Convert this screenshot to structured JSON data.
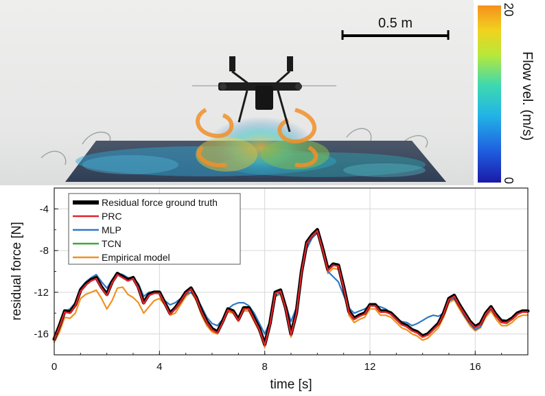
{
  "scene": {
    "scale_bar_label": "0.5 m"
  },
  "colorbar": {
    "label": "Flow vel. (m/s)",
    "max_label": "20",
    "min_label": "0",
    "colors": [
      "#1a1aa8",
      "#1f5fe0",
      "#22b4e6",
      "#3dd9b0",
      "#b7e83a",
      "#f2d21e",
      "#f5901c"
    ]
  },
  "chart_data": {
    "type": "line",
    "xlabel": "time [s]",
    "ylabel": "residual force [N]",
    "xlim": [
      0,
      18
    ],
    "ylim": [
      -18,
      -2
    ],
    "xticks": [
      0,
      4,
      8,
      12,
      16
    ],
    "yticks": [
      -16,
      -12,
      -8,
      -4
    ],
    "grid": true,
    "legend_position": "top-left",
    "x": [
      0,
      0.2,
      0.4,
      0.6,
      0.8,
      1.0,
      1.2,
      1.4,
      1.6,
      1.8,
      2.0,
      2.2,
      2.4,
      2.6,
      2.8,
      3.0,
      3.2,
      3.4,
      3.6,
      3.8,
      4.0,
      4.2,
      4.4,
      4.6,
      4.8,
      5.0,
      5.2,
      5.4,
      5.6,
      5.8,
      6.0,
      6.2,
      6.4,
      6.6,
      6.8,
      7.0,
      7.2,
      7.4,
      7.6,
      7.8,
      8.0,
      8.2,
      8.4,
      8.6,
      8.8,
      9.0,
      9.2,
      9.4,
      9.6,
      9.8,
      10.0,
      10.2,
      10.4,
      10.6,
      10.8,
      11.0,
      11.2,
      11.4,
      11.6,
      11.8,
      12.0,
      12.2,
      12.4,
      12.6,
      12.8,
      13.0,
      13.2,
      13.4,
      13.6,
      13.8,
      14.0,
      14.2,
      14.4,
      14.6,
      14.8,
      15.0,
      15.2,
      15.4,
      15.6,
      15.8,
      16.0,
      16.2,
      16.4,
      16.6,
      16.8,
      17.0,
      17.2,
      17.4,
      17.6,
      17.8,
      18.0
    ],
    "series": [
      {
        "name": "Residual force ground truth",
        "color": "#000000",
        "values": [
          -16.5,
          -15.2,
          -13.8,
          -13.9,
          -13.2,
          -11.8,
          -11.2,
          -10.8,
          -10.6,
          -11.5,
          -12.2,
          -11.0,
          -10.2,
          -10.5,
          -10.8,
          -10.6,
          -11.5,
          -13.0,
          -12.2,
          -12.0,
          -12.0,
          -13.0,
          -14.0,
          -13.5,
          -12.8,
          -12.0,
          -11.6,
          -12.5,
          -13.8,
          -14.8,
          -15.5,
          -15.8,
          -14.8,
          -13.6,
          -13.8,
          -14.6,
          -13.5,
          -13.5,
          -14.5,
          -15.5,
          -17.0,
          -15.0,
          -12.0,
          -11.8,
          -13.5,
          -16.0,
          -14.0,
          -10.0,
          -7.2,
          -6.5,
          -6.0,
          -7.8,
          -9.8,
          -9.3,
          -9.4,
          -11.5,
          -13.8,
          -14.5,
          -14.2,
          -14.0,
          -13.2,
          -13.2,
          -13.8,
          -13.8,
          -14.0,
          -14.5,
          -15.0,
          -15.2,
          -15.6,
          -15.8,
          -16.2,
          -16.0,
          -15.5,
          -15.0,
          -14.0,
          -12.6,
          -12.3,
          -13.2,
          -14.0,
          -14.8,
          -15.3,
          -15.0,
          -14.0,
          -13.4,
          -14.2,
          -14.8,
          -14.8,
          -14.5,
          -14.0,
          -13.8,
          -13.8
        ]
      },
      {
        "name": "PRC",
        "color": "#e0242a",
        "values": [
          -16.6,
          -15.3,
          -13.9,
          -14.0,
          -13.3,
          -11.9,
          -11.3,
          -10.9,
          -10.7,
          -11.6,
          -12.3,
          -11.1,
          -10.3,
          -10.6,
          -10.9,
          -10.7,
          -11.6,
          -13.1,
          -12.3,
          -12.1,
          -12.1,
          -13.1,
          -14.1,
          -13.6,
          -12.9,
          -12.1,
          -11.7,
          -12.6,
          -13.9,
          -14.9,
          -15.6,
          -15.9,
          -14.9,
          -13.7,
          -13.9,
          -14.7,
          -13.6,
          -13.6,
          -14.6,
          -15.6,
          -17.1,
          -15.1,
          -12.1,
          -11.9,
          -13.6,
          -16.1,
          -14.1,
          -10.1,
          -7.3,
          -6.6,
          -6.1,
          -7.9,
          -9.9,
          -9.4,
          -9.5,
          -11.6,
          -13.9,
          -14.6,
          -14.3,
          -14.1,
          -13.3,
          -13.3,
          -13.9,
          -13.9,
          -14.1,
          -14.6,
          -15.1,
          -15.3,
          -15.7,
          -15.9,
          -16.3,
          -16.1,
          -15.6,
          -15.1,
          -14.1,
          -12.7,
          -12.4,
          -13.3,
          -14.1,
          -14.9,
          -15.4,
          -15.1,
          -14.1,
          -13.5,
          -14.3,
          -14.9,
          -14.9,
          -14.6,
          -14.1,
          -13.9,
          -13.9
        ]
      },
      {
        "name": "MLP",
        "color": "#2f78c4",
        "values": [
          -16.2,
          -15.0,
          -13.8,
          -13.6,
          -13.0,
          -11.6,
          -11.0,
          -10.6,
          -10.3,
          -11.0,
          -11.6,
          -10.8,
          -10.2,
          -10.3,
          -10.6,
          -10.6,
          -11.2,
          -12.4,
          -12.0,
          -11.9,
          -12.0,
          -12.8,
          -13.2,
          -13.0,
          -12.6,
          -12.2,
          -12.0,
          -12.5,
          -13.4,
          -14.4,
          -15.0,
          -15.2,
          -14.6,
          -13.6,
          -13.2,
          -13.0,
          -13.0,
          -13.3,
          -14.0,
          -15.0,
          -16.0,
          -14.8,
          -12.4,
          -12.0,
          -13.2,
          -14.8,
          -13.5,
          -10.5,
          -7.8,
          -6.8,
          -6.3,
          -7.5,
          -10.0,
          -10.5,
          -11.0,
          -12.3,
          -13.5,
          -14.0,
          -13.8,
          -13.6,
          -13.3,
          -13.3,
          -13.4,
          -13.6,
          -14.0,
          -14.6,
          -14.8,
          -14.9,
          -15.2,
          -15.0,
          -14.7,
          -14.4,
          -14.2,
          -14.3,
          -14.0,
          -12.8,
          -12.6,
          -13.3,
          -14.3,
          -15.0,
          -15.6,
          -15.3,
          -14.2,
          -13.6,
          -14.0,
          -14.6,
          -14.7,
          -14.4,
          -14.0,
          -13.8,
          -13.7
        ]
      },
      {
        "name": "TCN",
        "color": "#3aa836",
        "values": [
          -16.3,
          -15.0,
          -13.7,
          -13.7,
          -13.1,
          -11.7,
          -11.1,
          -10.7,
          -10.5,
          -11.4,
          -12.1,
          -10.9,
          -10.2,
          -10.4,
          -10.7,
          -10.5,
          -11.4,
          -12.9,
          -12.1,
          -11.9,
          -11.9,
          -12.9,
          -13.9,
          -13.4,
          -12.7,
          -11.9,
          -11.5,
          -12.4,
          -13.7,
          -14.7,
          -15.4,
          -15.7,
          -14.7,
          -13.5,
          -13.7,
          -14.5,
          -13.4,
          -13.4,
          -14.4,
          -15.4,
          -16.8,
          -14.9,
          -11.9,
          -11.7,
          -13.4,
          -15.8,
          -13.9,
          -9.9,
          -7.1,
          -6.4,
          -5.9,
          -7.7,
          -9.7,
          -9.2,
          -9.3,
          -11.4,
          -13.7,
          -14.4,
          -14.1,
          -13.9,
          -13.1,
          -13.1,
          -13.7,
          -13.7,
          -13.9,
          -14.4,
          -14.9,
          -15.1,
          -15.5,
          -15.7,
          -16.1,
          -15.9,
          -15.4,
          -14.9,
          -13.9,
          -12.5,
          -12.2,
          -13.1,
          -13.9,
          -14.7,
          -15.2,
          -14.9,
          -13.9,
          -13.3,
          -14.1,
          -14.9,
          -15.0,
          -14.6,
          -14.1,
          -13.8,
          -13.7
        ]
      },
      {
        "name": "Empirical model",
        "color": "#f2901e",
        "values": [
          -16.8,
          -15.8,
          -14.4,
          -14.5,
          -14.0,
          -12.6,
          -12.2,
          -12.0,
          -11.8,
          -12.6,
          -13.6,
          -12.8,
          -11.6,
          -11.5,
          -12.2,
          -12.5,
          -13.0,
          -14.0,
          -13.4,
          -12.8,
          -12.6,
          -13.2,
          -14.2,
          -14.0,
          -13.2,
          -12.4,
          -12.0,
          -12.8,
          -14.2,
          -15.2,
          -15.8,
          -16.0,
          -15.0,
          -13.9,
          -14.0,
          -14.8,
          -13.8,
          -13.8,
          -14.8,
          -15.8,
          -17.3,
          -15.4,
          -12.4,
          -12.2,
          -13.8,
          -16.3,
          -14.4,
          -10.4,
          -7.6,
          -6.8,
          -6.3,
          -8.2,
          -10.2,
          -9.7,
          -9.8,
          -11.9,
          -14.2,
          -14.9,
          -14.6,
          -14.4,
          -13.6,
          -13.6,
          -14.2,
          -14.2,
          -14.4,
          -14.9,
          -15.4,
          -15.6,
          -16.0,
          -16.2,
          -16.6,
          -16.4,
          -15.9,
          -15.4,
          -14.4,
          -13.0,
          -12.7,
          -13.6,
          -14.4,
          -15.2,
          -15.7,
          -15.4,
          -14.4,
          -13.8,
          -14.6,
          -15.2,
          -15.2,
          -14.9,
          -14.4,
          -14.2,
          -14.2
        ]
      }
    ]
  }
}
